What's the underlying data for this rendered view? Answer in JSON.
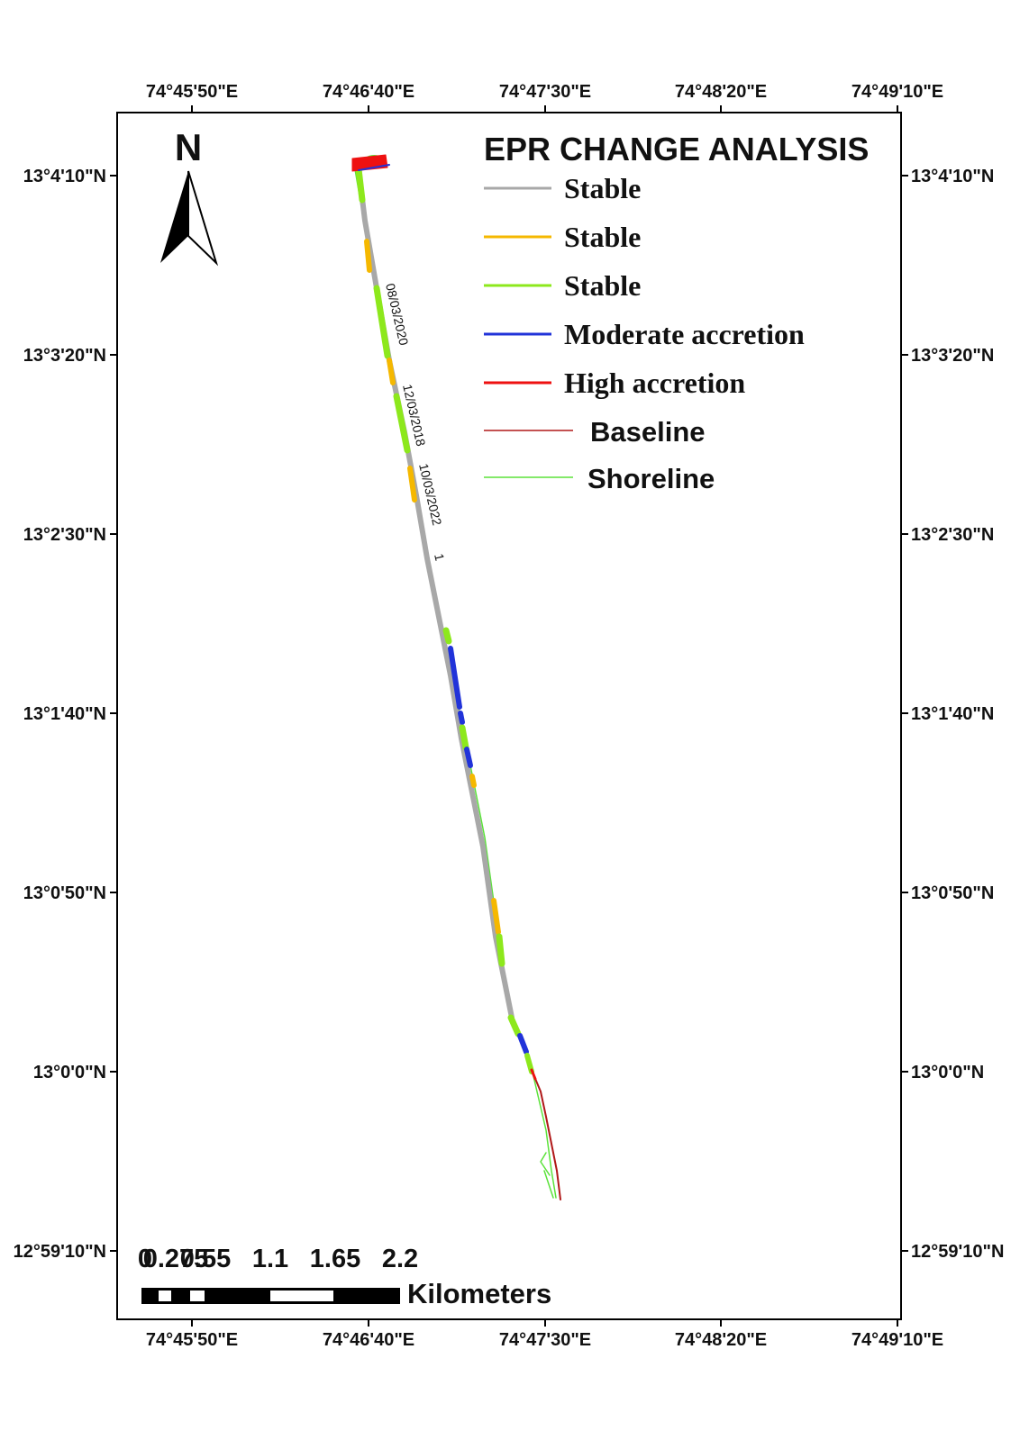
{
  "map": {
    "title": "EPR CHANGE ANALYSIS",
    "north_letter": "N",
    "coords_top": [
      "74°45'50\"E",
      "74°46'40\"E",
      "74°47'30\"E",
      "74°48'20\"E",
      "74°49'10\"E"
    ],
    "coords_bottom": [
      "74°45'50\"E",
      "74°46'40\"E",
      "74°47'30\"E",
      "74°48'20\"E",
      "74°49'10\"E"
    ],
    "coords_left": [
      "13°4'10\"N",
      "13°3'20\"N",
      "13°2'30\"N",
      "13°1'40\"N",
      "13°0'50\"N",
      "13°0'0\"N",
      "12°59'10\"N"
    ],
    "coords_right": [
      "13°4'10\"N",
      "13°3'20\"N",
      "13°2'30\"N",
      "13°1'40\"N",
      "13°0'50\"N",
      "13°0'0\"N",
      "12°59'10\"N"
    ],
    "legend": [
      {
        "label": "Stable",
        "color": "#a8a8a8"
      },
      {
        "label": "Stable",
        "color": "#f5b800"
      },
      {
        "label": "Stable",
        "color": "#8de81c"
      },
      {
        "label": "Moderate accretion",
        "color": "#2133d9"
      },
      {
        "label": "High accretion",
        "color": "#ee1111"
      },
      {
        "label": "Baseline",
        "color": "#b01818"
      },
      {
        "label": "Shoreline",
        "color": "#5be23a"
      }
    ],
    "shoreline_dates": [
      "08/03/2020",
      "12/03/2018",
      "10/03/2022"
    ],
    "transect_label": "1",
    "scale": {
      "ticks": [
        "0",
        "0.275",
        "0.55",
        "1.1",
        "1.65",
        "2.2"
      ],
      "unit": "Kilometers"
    }
  }
}
